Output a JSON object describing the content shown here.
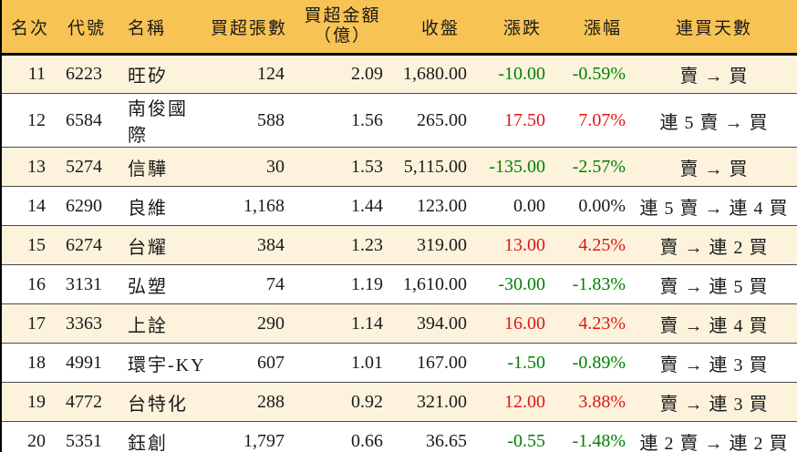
{
  "table": {
    "columns": [
      {
        "key": "rank",
        "label": "名次"
      },
      {
        "key": "code",
        "label": "代號"
      },
      {
        "key": "name",
        "label": "名稱"
      },
      {
        "key": "volume",
        "label": "買超張數"
      },
      {
        "key": "amount",
        "label": "買超金額",
        "label_line2": "（億）"
      },
      {
        "key": "close",
        "label": "收盤"
      },
      {
        "key": "change",
        "label": "漲跌"
      },
      {
        "key": "pct",
        "label": "漲幅"
      },
      {
        "key": "streak",
        "label": "連買天數"
      }
    ],
    "rows": [
      {
        "rank": "11",
        "code": "6223",
        "name": "旺矽",
        "volume": "124",
        "amount": "2.09",
        "close": "1,680.00",
        "change": "-10.00",
        "pct": "-0.59%",
        "streak": "賣 → 買",
        "trend": "down"
      },
      {
        "rank": "12",
        "code": "6584",
        "name": "南俊國際",
        "volume": "588",
        "amount": "1.56",
        "close": "265.00",
        "change": "17.50",
        "pct": "7.07%",
        "streak": "連 5 賣 → 買",
        "trend": "up"
      },
      {
        "rank": "13",
        "code": "5274",
        "name": "信驊",
        "volume": "30",
        "amount": "1.53",
        "close": "5,115.00",
        "change": "-135.00",
        "pct": "-2.57%",
        "streak": "賣 → 買",
        "trend": "down"
      },
      {
        "rank": "14",
        "code": "6290",
        "name": "良維",
        "volume": "1,168",
        "amount": "1.44",
        "close": "123.00",
        "change": "0.00",
        "pct": "0.00%",
        "streak": "連 5 賣 → 連 4 買",
        "trend": "flat"
      },
      {
        "rank": "15",
        "code": "6274",
        "name": "台耀",
        "volume": "384",
        "amount": "1.23",
        "close": "319.00",
        "change": "13.00",
        "pct": "4.25%",
        "streak": "賣 → 連 2 買",
        "trend": "up"
      },
      {
        "rank": "16",
        "code": "3131",
        "name": "弘塑",
        "volume": "74",
        "amount": "1.19",
        "close": "1,610.00",
        "change": "-30.00",
        "pct": "-1.83%",
        "streak": "賣 → 連 5 買",
        "trend": "down"
      },
      {
        "rank": "17",
        "code": "3363",
        "name": "上詮",
        "volume": "290",
        "amount": "1.14",
        "close": "394.00",
        "change": "16.00",
        "pct": "4.23%",
        "streak": "賣 → 連 4 買",
        "trend": "up"
      },
      {
        "rank": "18",
        "code": "4991",
        "name": "環宇-KY",
        "volume": "607",
        "amount": "1.01",
        "close": "167.00",
        "change": "-1.50",
        "pct": "-0.89%",
        "streak": "賣 → 連 3 買",
        "trend": "down"
      },
      {
        "rank": "19",
        "code": "4772",
        "name": "台特化",
        "volume": "288",
        "amount": "0.92",
        "close": "321.00",
        "change": "12.00",
        "pct": "3.88%",
        "streak": "賣 → 連 3 買",
        "trend": "up"
      },
      {
        "rank": "20",
        "code": "5351",
        "name": "鈺創",
        "volume": "1,797",
        "amount": "0.66",
        "close": "36.65",
        "change": "-0.55",
        "pct": "-1.48%",
        "streak": "連 2 賣 → 連 2 買",
        "trend": "down"
      }
    ]
  },
  "colors": {
    "header_bg": "#f8c355",
    "row_alt_bg": "#fdf3dc",
    "row_bg": "#ffffff",
    "up": "#e01414",
    "down": "#008000",
    "flat": "#1a1a1a",
    "border": "#000000"
  }
}
